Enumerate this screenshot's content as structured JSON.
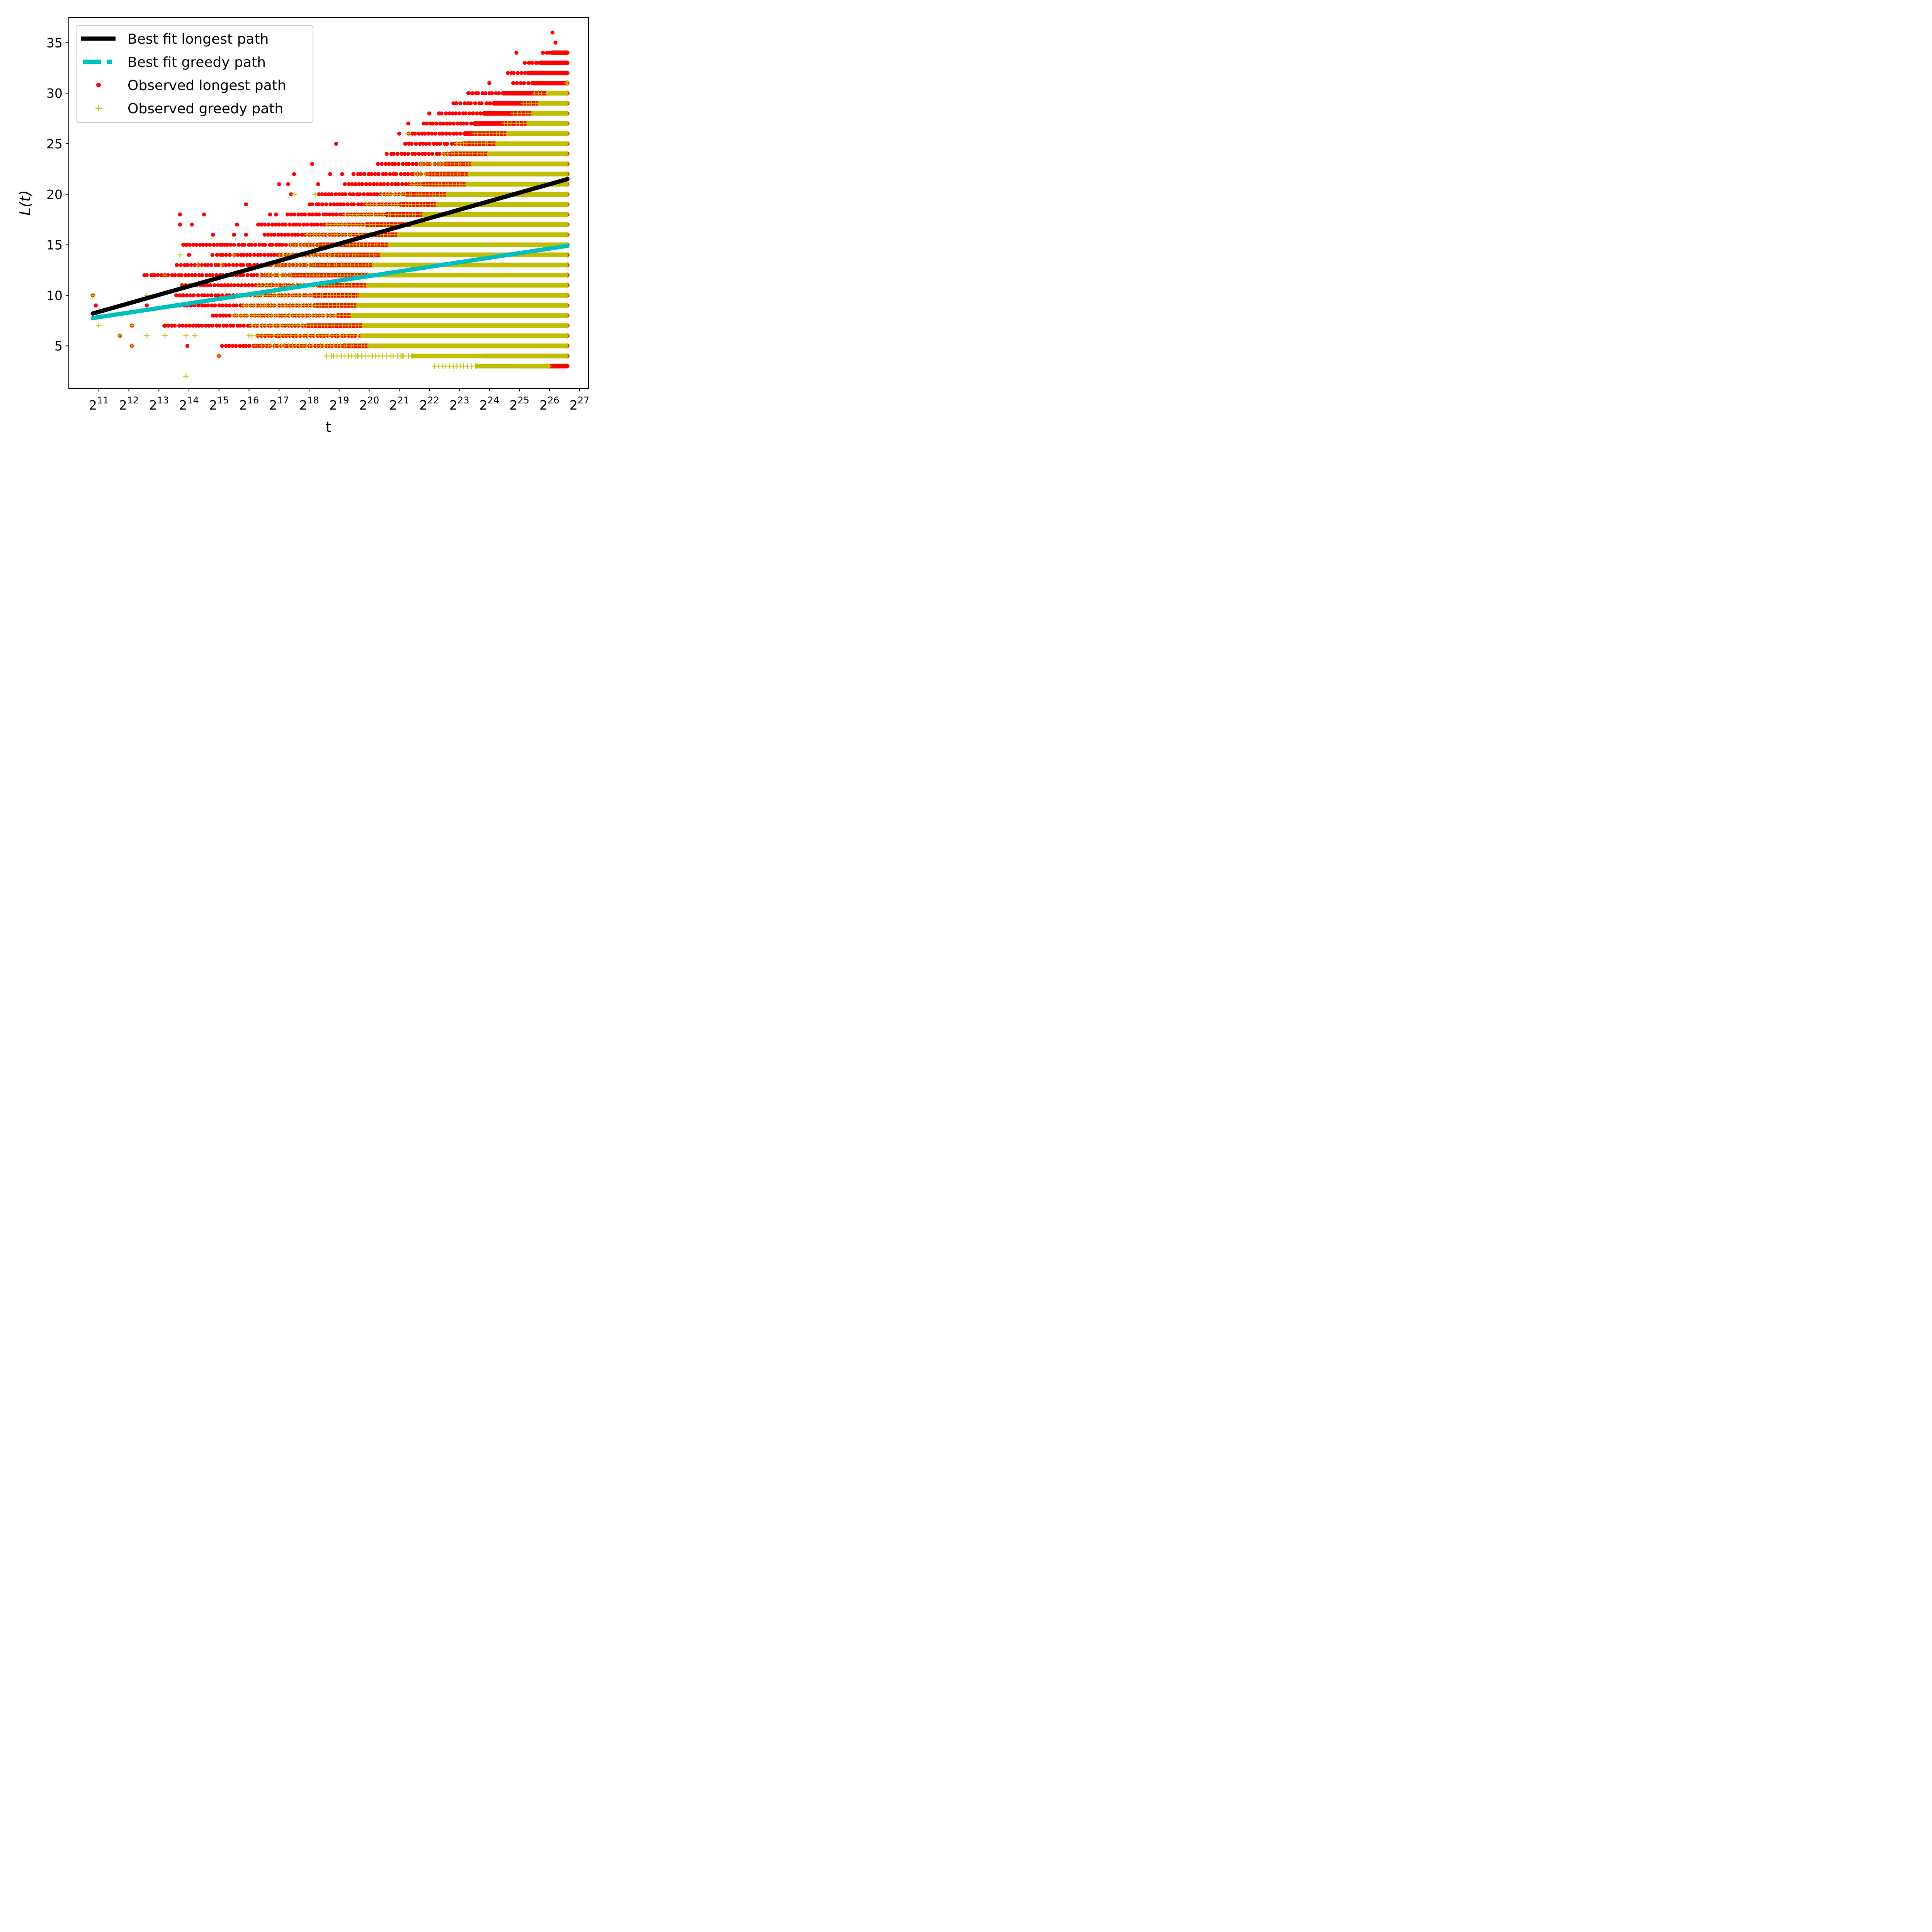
{
  "chart_data": {
    "type": "scatter",
    "xlabel": "t",
    "ylabel": "L(t)",
    "x_scale": "log2",
    "x_ticks": [
      11,
      12,
      13,
      14,
      15,
      16,
      17,
      18,
      19,
      20,
      21,
      22,
      23,
      24,
      25,
      26,
      27
    ],
    "x_tick_base": "2",
    "xlim_log2": [
      10.0,
      27.3
    ],
    "ylim": [
      0.8,
      37.5
    ],
    "y_ticks": [
      5,
      10,
      15,
      20,
      25,
      30,
      35
    ],
    "grid": false,
    "legend_position": "top-left",
    "legend": [
      {
        "label": "Best fit longest path",
        "series": "fit_longest"
      },
      {
        "label": "Best fit greedy path",
        "series": "fit_greedy"
      },
      {
        "label": "Observed longest path",
        "series": "obs_longest"
      },
      {
        "label": "Observed greedy path",
        "series": "obs_greedy"
      }
    ],
    "series": [
      {
        "name": "Best fit longest path",
        "key": "fit_longest",
        "style": "line",
        "color": "#000000",
        "x_log2": [
          10.8,
          26.6
        ],
        "y": [
          8.2,
          21.5
        ]
      },
      {
        "name": "Best fit greedy path",
        "key": "fit_greedy",
        "style": "line",
        "color": "#00bfbf",
        "x_log2": [
          10.8,
          26.6
        ],
        "y": [
          7.75,
          14.9
        ]
      },
      {
        "name": "Observed longest path",
        "key": "obs_longest",
        "style": "dot",
        "color": "#ff0000",
        "ranges": [
          [
            3,
            24.0,
            26.6
          ],
          [
            4,
            22.2,
            26.6
          ],
          [
            5,
            15.1,
            26.6
          ],
          [
            6,
            16.3,
            26.6
          ],
          [
            7,
            13.2,
            26.6
          ],
          [
            8,
            14.8,
            26.6
          ],
          [
            9,
            13.6,
            26.6
          ],
          [
            10,
            13.6,
            26.6
          ],
          [
            11,
            13.8,
            26.6
          ],
          [
            12,
            12.5,
            26.6
          ],
          [
            13,
            13.6,
            26.6
          ],
          [
            14,
            14.8,
            26.6
          ],
          [
            15,
            13.8,
            26.6
          ],
          [
            16,
            16.5,
            26.6
          ],
          [
            17,
            16.3,
            26.6
          ],
          [
            18,
            17.3,
            26.6
          ],
          [
            19,
            18.0,
            26.6
          ],
          [
            20,
            18.3,
            26.6
          ],
          [
            21,
            19.2,
            26.6
          ],
          [
            22,
            19.5,
            26.6
          ],
          [
            23,
            20.3,
            26.6
          ],
          [
            24,
            20.6,
            26.6
          ],
          [
            25,
            21.2,
            26.6
          ],
          [
            26,
            21.3,
            26.6
          ],
          [
            27,
            21.8,
            26.6
          ],
          [
            28,
            22.3,
            26.6
          ],
          [
            29,
            22.8,
            26.6
          ],
          [
            30,
            23.3,
            26.6
          ],
          [
            31,
            24.8,
            26.6
          ],
          [
            32,
            24.6,
            26.6
          ],
          [
            33,
            25.2,
            26.6
          ],
          [
            34,
            25.8,
            26.6
          ]
        ],
        "extra_points": [
          [
            10.8,
            10
          ],
          [
            10.9,
            9
          ],
          [
            11.7,
            6
          ],
          [
            12.1,
            7
          ],
          [
            12.1,
            5
          ],
          [
            12.6,
            9
          ],
          [
            12.8,
            12
          ],
          [
            13.2,
            7
          ],
          [
            13.2,
            12
          ],
          [
            13.6,
            13
          ],
          [
            13.7,
            17
          ],
          [
            13.7,
            18
          ],
          [
            13.8,
            10
          ],
          [
            13.9,
            15
          ],
          [
            13.95,
            5
          ],
          [
            14.0,
            14
          ],
          [
            14.1,
            17
          ],
          [
            14.5,
            18
          ],
          [
            14.8,
            16
          ],
          [
            14.8,
            8
          ],
          [
            15.0,
            4
          ],
          [
            15.1,
            15
          ],
          [
            15.5,
            16
          ],
          [
            15.6,
            17
          ],
          [
            15.9,
            19
          ],
          [
            15.9,
            16
          ],
          [
            16.7,
            18
          ],
          [
            16.9,
            18
          ],
          [
            17.0,
            21
          ],
          [
            17.3,
            21
          ],
          [
            17.5,
            22
          ],
          [
            17.4,
            20
          ],
          [
            18.1,
            23
          ],
          [
            18.3,
            21
          ],
          [
            18.7,
            22
          ],
          [
            18.9,
            25
          ],
          [
            19.1,
            22
          ],
          [
            21.0,
            26
          ],
          [
            21.3,
            27
          ],
          [
            22.0,
            28
          ],
          [
            23.3,
            30
          ],
          [
            24.0,
            31
          ],
          [
            24.9,
            34
          ],
          [
            25.6,
            33
          ],
          [
            26.1,
            36
          ],
          [
            26.2,
            35
          ],
          [
            25.9,
            3
          ]
        ]
      },
      {
        "name": "Observed greedy path",
        "key": "obs_greedy",
        "style": "plus",
        "color": "#bfbf00",
        "ranges": [
          [
            3,
            22.2,
            26.0
          ],
          [
            4,
            18.6,
            26.6
          ],
          [
            5,
            16.4,
            26.6
          ],
          [
            6,
            16.0,
            26.6
          ],
          [
            7,
            16.1,
            26.6
          ],
          [
            8,
            15.5,
            26.6
          ],
          [
            9,
            15.8,
            26.6
          ],
          [
            10,
            15.9,
            26.6
          ],
          [
            11,
            16.3,
            26.6
          ],
          [
            12,
            16.4,
            26.6
          ],
          [
            13,
            16.6,
            26.6
          ],
          [
            14,
            17.0,
            26.6
          ],
          [
            15,
            17.4,
            26.6
          ],
          [
            16,
            17.9,
            26.6
          ],
          [
            17,
            18.6,
            26.6
          ],
          [
            18,
            19.2,
            26.6
          ],
          [
            19,
            19.9,
            26.6
          ],
          [
            20,
            20.4,
            26.6
          ],
          [
            21,
            21.4,
            26.6
          ],
          [
            22,
            21.5,
            26.6
          ],
          [
            23,
            21.7,
            26.6
          ],
          [
            24,
            22.5,
            26.6
          ],
          [
            25,
            22.9,
            26.6
          ],
          [
            26,
            23.5,
            26.6
          ],
          [
            27,
            24.5,
            26.6
          ],
          [
            28,
            24.8,
            26.6
          ],
          [
            29,
            25.1,
            26.6
          ],
          [
            30,
            25.5,
            26.6
          ],
          [
            31,
            26.6,
            26.6
          ]
        ],
        "extra_points": [
          [
            10.8,
            10
          ],
          [
            11.0,
            7
          ],
          [
            11.7,
            6
          ],
          [
            12.1,
            7
          ],
          [
            12.1,
            5
          ],
          [
            12.6,
            6
          ],
          [
            12.6,
            10
          ],
          [
            13.2,
            12
          ],
          [
            13.2,
            6
          ],
          [
            13.9,
            2
          ],
          [
            13.7,
            14
          ],
          [
            13.9,
            6
          ],
          [
            14.2,
            6
          ],
          [
            14.3,
            13
          ],
          [
            15.0,
            4
          ],
          [
            15.1,
            13
          ],
          [
            15.5,
            14
          ],
          [
            16.2,
            5
          ],
          [
            17.5,
            20
          ],
          [
            18.2,
            20
          ],
          [
            21.3,
            26
          ],
          [
            19.6,
            4
          ],
          [
            21.1,
            4
          ]
        ]
      }
    ]
  }
}
